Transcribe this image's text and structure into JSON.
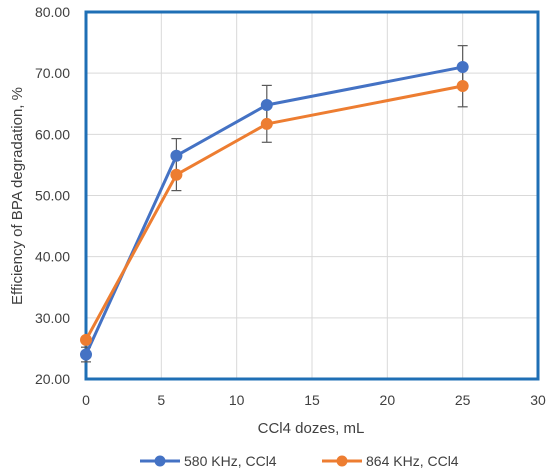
{
  "chart_data": {
    "type": "line",
    "xlabel": "CCl4 dozes, mL",
    "ylabel": "Efficiency of BPA degradation, %",
    "xlim": [
      0,
      30
    ],
    "ylim": [
      20,
      80
    ],
    "x_ticks": [
      "0",
      "5",
      "10",
      "15",
      "20",
      "25",
      "30"
    ],
    "y_ticks": [
      "20.00",
      "30.00",
      "40.00",
      "50.00",
      "60.00",
      "70.00",
      "80.00"
    ],
    "grid": true,
    "legend_position": "bottom",
    "series": [
      {
        "name": "580 KHz, CCl4",
        "color": "#4472C4",
        "x": [
          0,
          6,
          12,
          25
        ],
        "y": [
          24.0,
          56.5,
          64.8,
          71.0
        ],
        "error": [
          1.2,
          2.8,
          3.2,
          3.5
        ]
      },
      {
        "name": "864 KHz, CCl4",
        "color": "#ED7D31",
        "x": [
          0,
          6,
          12,
          25
        ],
        "y": [
          26.4,
          53.4,
          61.7,
          67.9
        ],
        "error": [
          0.0,
          2.6,
          3.0,
          3.4
        ]
      }
    ]
  }
}
